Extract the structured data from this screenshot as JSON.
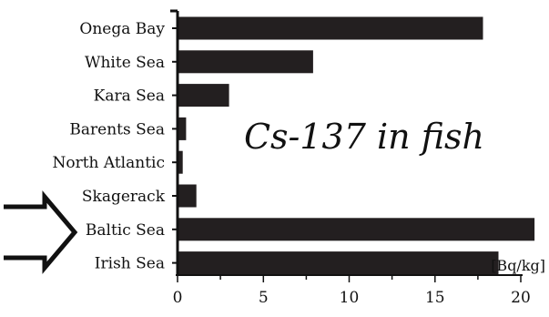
{
  "chart_data": {
    "type": "bar",
    "orientation": "horizontal",
    "title": "Cs-137 in fish",
    "unit_label": "[Bq/kg]",
    "categories": [
      "Onega Bay",
      "White Sea",
      "Kara Sea",
      "Barents Sea",
      "North Atlantic",
      "Skagerack",
      "Baltic Sea",
      "Irish Sea"
    ],
    "values": [
      17.8,
      7.9,
      3.0,
      0.5,
      0.3,
      1.1,
      20.8,
      18.7
    ],
    "xlim": [
      0,
      20
    ],
    "xticks": [
      "0",
      "5",
      "10",
      "15",
      "20"
    ],
    "bar_color": "#231f20",
    "highlight": "Baltic Sea",
    "highlight_marker": "arrow-right-icon",
    "grid": false,
    "legend": "none"
  }
}
